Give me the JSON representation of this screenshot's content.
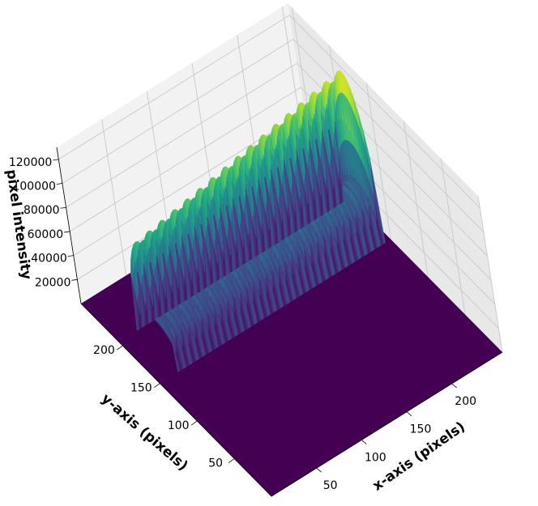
{
  "chart_data": {
    "type": "surface3d",
    "title": "",
    "xlabel": "x-axis (pixels)",
    "ylabel": "y-axis (pixels)",
    "zlabel": "pixel intensity",
    "xlim": [
      0,
      256
    ],
    "ylim": [
      0,
      256
    ],
    "zlim": [
      0,
      130000
    ],
    "x_ticks": [
      50,
      100,
      150,
      200
    ],
    "y_ticks": [
      50,
      100,
      150,
      200
    ],
    "z_ticks": [
      20000,
      40000,
      60000,
      80000,
      100000,
      120000
    ],
    "z_tick_labels": [
      "20000",
      "40000",
      "60000",
      "80000",
      "100000",
      "120000"
    ],
    "colormap": "viridis",
    "colormap_stops": [
      "#440154",
      "#472f7d",
      "#3b518b",
      "#2c718e",
      "#21908d",
      "#27ad81",
      "#5cc863",
      "#aadc32",
      "#fde725"
    ],
    "grid": true,
    "background_pane": "#f2f2f2",
    "surface": {
      "description": "periodic ridge of fringes along x, non-zero only in a band of y",
      "x_range": [
        20,
        250
      ],
      "y_band": [
        150,
        205
      ],
      "fringe_count": 32,
      "peak_intensity": 125000,
      "baseline": 0
    }
  }
}
